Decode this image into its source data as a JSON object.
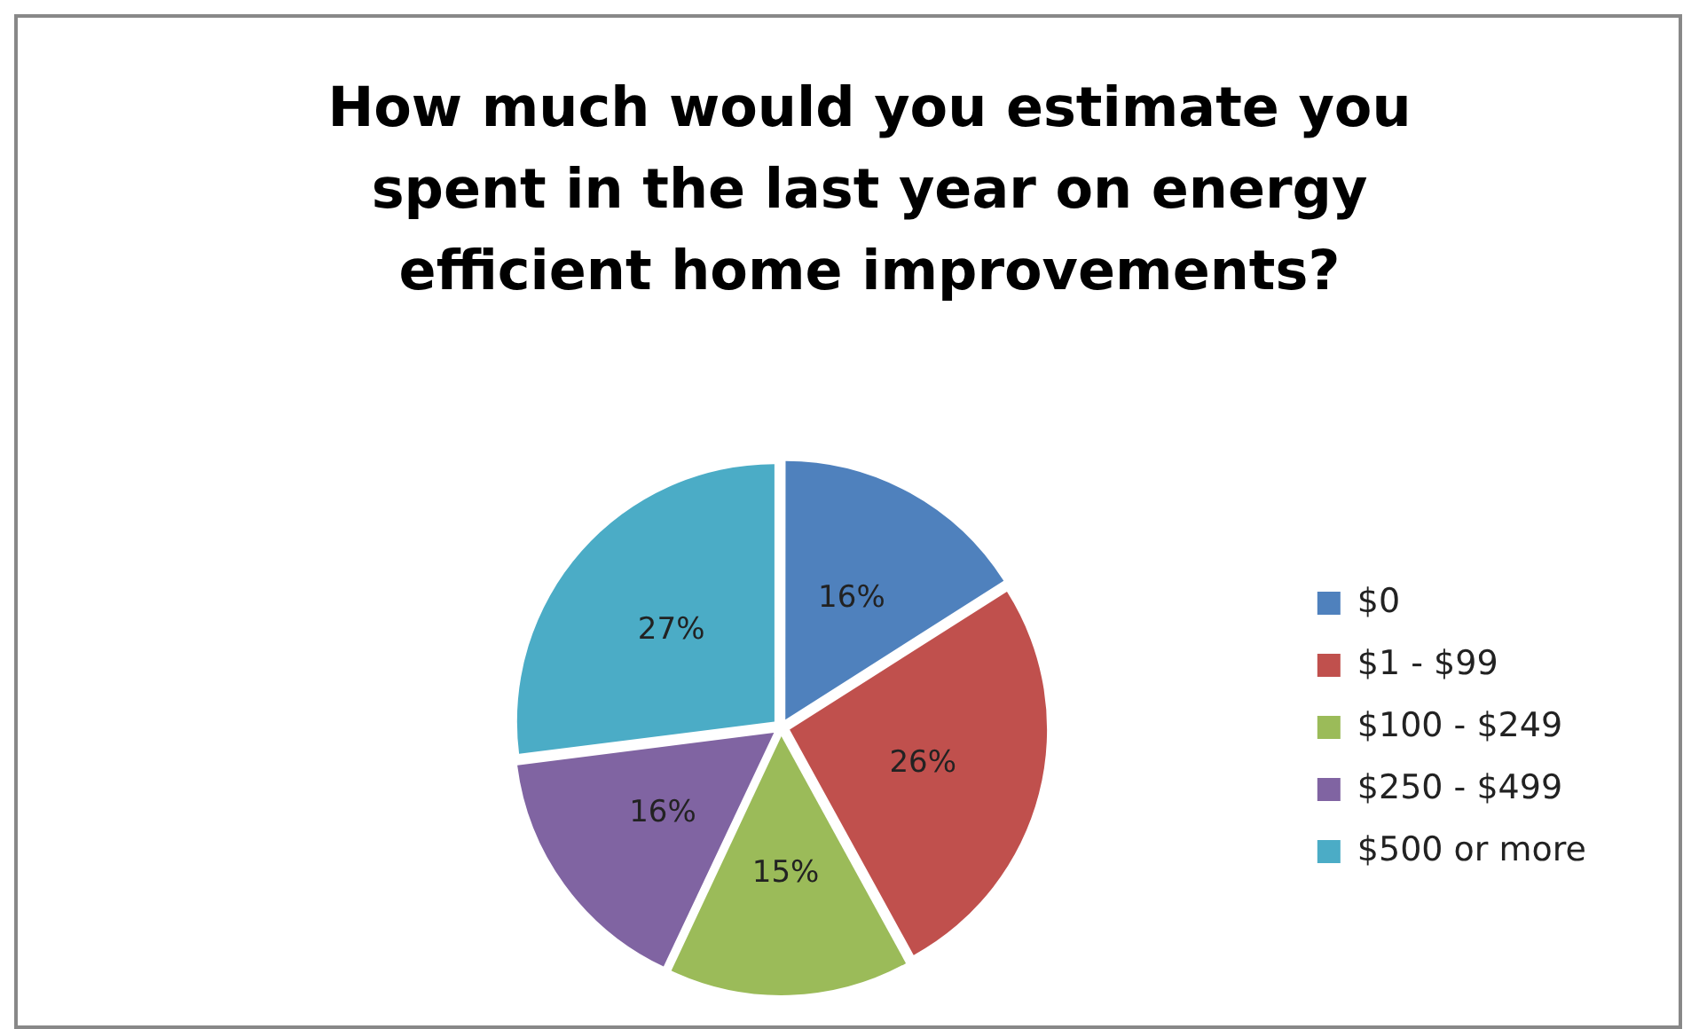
{
  "chart_data": {
    "type": "pie",
    "title": "How much would you estimate you spent in the last year on energy efficient home improvements?",
    "categories": [
      "$0",
      "$1 - $99",
      "$100 - $249",
      "$250 - $499",
      "$500 or more"
    ],
    "values": [
      16,
      26,
      15,
      16,
      27
    ],
    "value_labels": [
      "16%",
      "26%",
      "15%",
      "16%",
      "27%"
    ],
    "colors": [
      "#4f81bd",
      "#c0504d",
      "#9bbb59",
      "#8064a2",
      "#4bacc6"
    ],
    "legend": "right"
  }
}
